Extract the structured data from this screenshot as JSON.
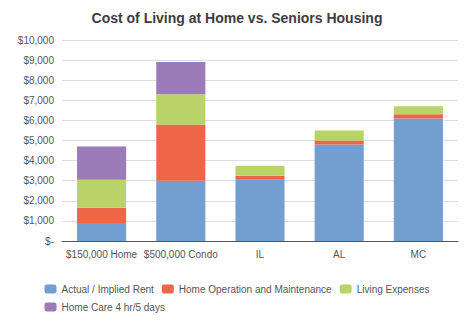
{
  "chart_data": {
    "type": "bar",
    "title": "Cost of Living at Home vs. Seniors Housing",
    "categories": [
      "$150,000 Home",
      "$500,000 Condo",
      "IL",
      "AL",
      "MC"
    ],
    "series": [
      {
        "name": "Actual / Implied Rent",
        "color": "#729FCF",
        "values": [
          900,
          3000,
          3050,
          4800,
          6100
        ]
      },
      {
        "name": "Home Operation and Maintenance",
        "color": "#EF6548",
        "values": [
          750,
          2800,
          200,
          200,
          200
        ]
      },
      {
        "name": "Living Expenses",
        "color": "#B8D468",
        "values": [
          1400,
          1500,
          500,
          500,
          400
        ]
      },
      {
        "name": "Home Care 4 hr/5 days",
        "color": "#9B7BB8",
        "values": [
          1650,
          1600,
          0,
          0,
          0
        ]
      }
    ],
    "stacked": true,
    "ylim": [
      0,
      10000
    ],
    "yticks": [
      {
        "value": 0,
        "label": "$-"
      },
      {
        "value": 1000,
        "label": "$1,000"
      },
      {
        "value": 2000,
        "label": "$2,000"
      },
      {
        "value": 3000,
        "label": "$3,000"
      },
      {
        "value": 4000,
        "label": "$4,000"
      },
      {
        "value": 5000,
        "label": "$5,000"
      },
      {
        "value": 6000,
        "label": "$6,000"
      },
      {
        "value": 7000,
        "label": "$7,000"
      },
      {
        "value": 8000,
        "label": "$8,000"
      },
      {
        "value": 9000,
        "label": "$9,000"
      },
      {
        "value": 10000,
        "label": "$10,000"
      }
    ],
    "grid": true,
    "legend": "bottom"
  }
}
